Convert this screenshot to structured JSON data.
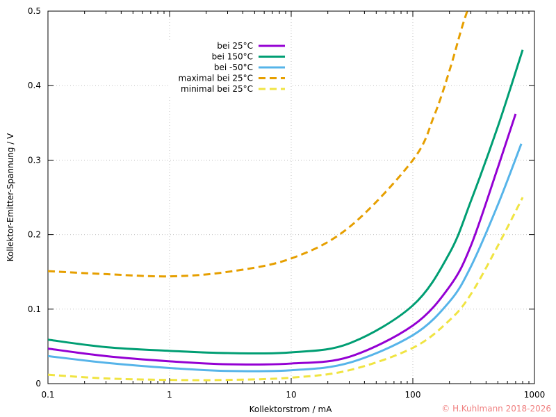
{
  "chart_data": {
    "type": "line",
    "xlabel": "Kollektorstrom / mA",
    "ylabel": "Kollektor-Emitter-Spannung / V",
    "x_scale": "log",
    "xlim": [
      0.1,
      1000
    ],
    "ylim": [
      0,
      0.5
    ],
    "x_ticks": [
      0.1,
      1,
      10,
      100,
      1000
    ],
    "x_tick_labels": [
      "0.1",
      "1",
      "10",
      "100",
      "1000"
    ],
    "y_ticks": [
      0,
      0.1,
      0.2,
      0.3,
      0.4,
      0.5
    ],
    "y_tick_labels": [
      "0",
      "0.1",
      "0.2",
      "0.3",
      "0.4",
      "0.5"
    ],
    "grid": true,
    "legend_position": "top-center",
    "series": [
      {
        "name": "bei 25°C",
        "color": "#9400d3",
        "dash": "solid",
        "x": [
          0.1,
          0.3,
          1,
          3,
          10,
          30,
          100,
          200,
          300,
          500,
          700
        ],
        "y": [
          0.047,
          0.037,
          0.03,
          0.026,
          0.027,
          0.036,
          0.078,
          0.13,
          0.185,
          0.29,
          0.362
        ]
      },
      {
        "name": "bei 150°C",
        "color": "#009e73",
        "dash": "solid",
        "x": [
          0.1,
          0.3,
          1,
          3,
          10,
          30,
          100,
          200,
          300,
          500,
          800
        ],
        "y": [
          0.059,
          0.049,
          0.044,
          0.041,
          0.042,
          0.054,
          0.105,
          0.175,
          0.245,
          0.345,
          0.448
        ]
      },
      {
        "name": "bei -50°C",
        "color": "#56b4e9",
        "dash": "solid",
        "x": [
          0.1,
          0.3,
          1,
          3,
          10,
          30,
          100,
          200,
          300,
          500,
          780
        ],
        "y": [
          0.037,
          0.028,
          0.021,
          0.017,
          0.018,
          0.028,
          0.065,
          0.11,
          0.157,
          0.24,
          0.322
        ]
      },
      {
        "name": "maximal bei 25°C",
        "color": "#e69f00",
        "dash": "dashed",
        "x": [
          0.1,
          0.3,
          1,
          3,
          10,
          30,
          100,
          150,
          200,
          250,
          280
        ],
        "y": [
          0.151,
          0.147,
          0.144,
          0.15,
          0.168,
          0.21,
          0.3,
          0.36,
          0.42,
          0.475,
          0.5
        ]
      },
      {
        "name": "minimal bei 25°C",
        "color": "#f0e442",
        "dash": "dashed",
        "x": [
          0.1,
          0.3,
          1,
          3,
          10,
          30,
          100,
          200,
          300,
          500,
          800
        ],
        "y": [
          0.012,
          0.007,
          0.005,
          0.005,
          0.008,
          0.018,
          0.048,
          0.085,
          0.12,
          0.185,
          0.25
        ]
      }
    ]
  },
  "copyright": {
    "text": "© H.Kuhlmann 2018-2026",
    "color": "#f08080"
  }
}
